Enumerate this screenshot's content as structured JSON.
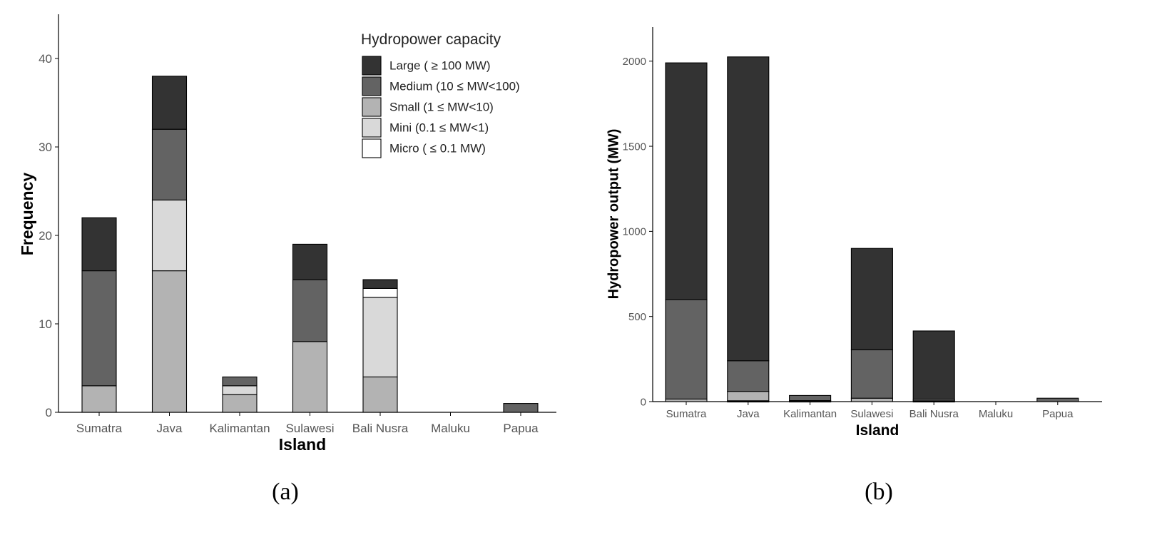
{
  "colors": {
    "large": "#333333",
    "medium": "#636363",
    "small": "#b3b3b3",
    "mini": "#d9d9d9",
    "micro": "#ffffff",
    "axis": "#000000"
  },
  "chart_data": [
    {
      "type": "bar",
      "stacked": true,
      "panel_label": "(a)",
      "xlabel": "Island",
      "ylabel": "Frequency",
      "ylim": [
        0,
        45
      ],
      "yticks": [
        0,
        10,
        20,
        30,
        40
      ],
      "categories": [
        "Sumatra",
        "Java",
        "Kalimantan",
        "Sulawesi",
        "Bali Nusra",
        "Maluku",
        "Papua"
      ],
      "legend": {
        "title": "Hydropower capacity",
        "placement": "top-right",
        "entries": [
          {
            "key": "large",
            "label": "Large ( ≥ 100 MW)"
          },
          {
            "key": "medium",
            "label": "Medium (10 ≤ MW<100)"
          },
          {
            "key": "small",
            "label": "Small (1 ≤ MW<10)"
          },
          {
            "key": "mini",
            "label": "Mini (0.1 ≤ MW<1)"
          },
          {
            "key": "micro",
            "label": "Micro ( ≤ 0.1 MW)"
          }
        ]
      },
      "series": [
        {
          "name": "Micro",
          "key": "micro",
          "values": [
            0,
            0,
            0,
            0,
            1,
            0,
            0
          ]
        },
        {
          "name": "Mini",
          "key": "mini",
          "values": [
            0,
            8,
            1,
            0,
            9,
            0,
            0
          ]
        },
        {
          "name": "Small",
          "key": "small",
          "values": [
            3,
            16,
            2,
            8,
            4,
            0,
            0
          ]
        },
        {
          "name": "Medium",
          "key": "medium",
          "values": [
            13,
            8,
            1,
            7,
            0,
            0,
            1
          ]
        },
        {
          "name": "Large",
          "key": "large",
          "values": [
            6,
            6,
            0,
            4,
            1,
            0,
            0
          ]
        }
      ],
      "stack_order_bottom_to_top": [
        "small",
        "mini",
        "micro",
        "medium",
        "large"
      ]
    },
    {
      "type": "bar",
      "stacked": true,
      "panel_label": "(b)",
      "xlabel": "Island",
      "ylabel": "Hydropower output (MW)",
      "ylim": [
        0,
        2200
      ],
      "yticks": [
        0,
        500,
        1000,
        1500,
        2000
      ],
      "categories": [
        "Sumatra",
        "Java",
        "Kalimantan",
        "Sulawesi",
        "Bali Nusra",
        "Maluku",
        "Papua"
      ],
      "series": [
        {
          "name": "Micro",
          "key": "micro",
          "values": [
            0,
            1,
            0,
            0,
            1,
            0,
            0
          ]
        },
        {
          "name": "Mini",
          "key": "mini",
          "values": [
            0,
            4,
            1,
            0,
            4,
            0,
            0
          ]
        },
        {
          "name": "Small",
          "key": "small",
          "values": [
            15,
            55,
            5,
            20,
            8,
            0,
            0
          ]
        },
        {
          "name": "Medium",
          "key": "medium",
          "values": [
            585,
            180,
            30,
            285,
            0,
            0,
            20
          ]
        },
        {
          "name": "Large",
          "key": "large",
          "values": [
            1390,
            1785,
            0,
            595,
            402,
            0,
            0
          ]
        }
      ],
      "stack_order_bottom_to_top": [
        "micro",
        "mini",
        "small",
        "medium",
        "large"
      ]
    }
  ]
}
